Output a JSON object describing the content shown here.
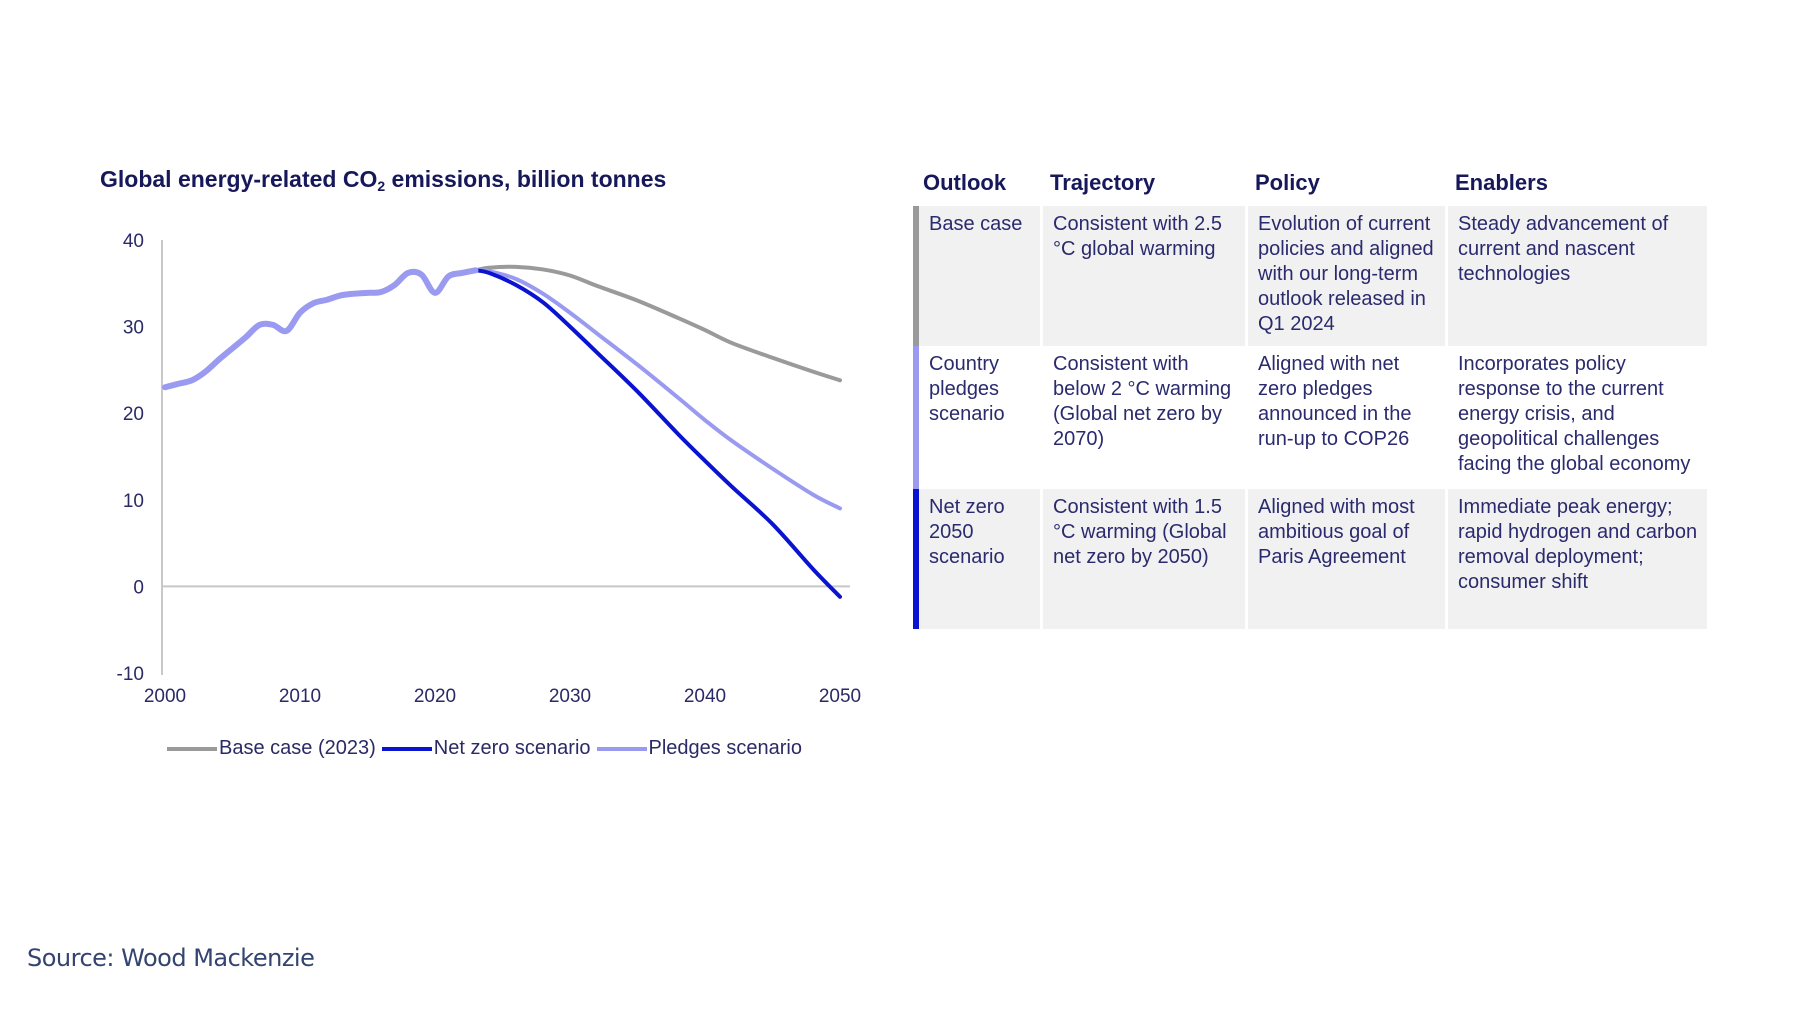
{
  "chart_title_main": "Global energy-related CO",
  "chart_title_sub": "2",
  "chart_title_rest": " emissions, billion tonnes",
  "chart_data": {
    "type": "line",
    "title": "Global energy-related CO2 emissions, billion tonnes",
    "xlabel": "",
    "ylabel": "",
    "xlim": [
      2000,
      2050
    ],
    "ylim": [
      -10,
      40
    ],
    "x_ticks": [
      2000,
      2010,
      2020,
      2030,
      2040,
      2050
    ],
    "y_ticks": [
      40,
      30,
      20,
      10,
      0,
      -10
    ],
    "grid": false,
    "legend_position": "bottom",
    "history": {
      "x": [
        2000,
        2001,
        2002,
        2003,
        2004,
        2005,
        2006,
        2007,
        2008,
        2009,
        2010,
        2011,
        2012,
        2013,
        2014,
        2015,
        2016,
        2017,
        2018,
        2019,
        2020,
        2021,
        2022,
        2023
      ],
      "y": [
        23.0,
        23.4,
        23.8,
        24.8,
        26.2,
        27.5,
        28.8,
        30.2,
        30.2,
        29.5,
        31.6,
        32.7,
        33.1,
        33.6,
        33.8,
        33.9,
        34.0,
        34.8,
        36.2,
        36.0,
        33.9,
        35.8,
        36.2,
        36.5
      ]
    },
    "series": [
      {
        "name": "Base case (2023)",
        "color": "#9a9a9a",
        "x": [
          2023,
          2024,
          2026,
          2028,
          2030,
          2032,
          2035,
          2038,
          2040,
          2042,
          2045,
          2048,
          2050
        ],
        "y": [
          36.5,
          36.8,
          36.9,
          36.6,
          35.9,
          34.7,
          33.0,
          31.0,
          29.6,
          28.1,
          26.4,
          24.8,
          23.8
        ]
      },
      {
        "name": "Net zero scenario",
        "color": "#0a14d0",
        "x": [
          2023,
          2024,
          2026,
          2028,
          2030,
          2032,
          2035,
          2038,
          2040,
          2042,
          2045,
          2048,
          2050
        ],
        "y": [
          36.5,
          36.2,
          34.8,
          32.8,
          30.0,
          27.0,
          22.5,
          17.6,
          14.5,
          11.5,
          7.2,
          2.0,
          -1.2
        ]
      },
      {
        "name": "Pledges scenario",
        "color": "#9a9af0",
        "x": [
          2023,
          2024,
          2026,
          2028,
          2030,
          2032,
          2035,
          2038,
          2040,
          2042,
          2045,
          2048,
          2050
        ],
        "y": [
          36.5,
          36.4,
          35.5,
          33.8,
          31.6,
          29.2,
          25.6,
          21.8,
          19.2,
          16.8,
          13.6,
          10.6,
          9.0
        ]
      }
    ]
  },
  "table": {
    "headers": [
      "Outlook",
      "Trajectory",
      "Policy",
      "Enablers"
    ],
    "rows": [
      {
        "outlook": "Base case",
        "trajectory": "Consistent with 2.5 °C global warming",
        "policy": "Evolution of current policies and aligned with our long-term outlook  released in Q1 2024",
        "enablers": "Steady advancement of current and nascent technologies",
        "accent": "#9a9a9a"
      },
      {
        "outlook": "Country pledges scenario",
        "trajectory": "Consistent with below 2 °C warming (Global net zero by 2070)",
        "policy": "Aligned with net zero pledges announced in the run-up to COP26",
        "enablers": "Incorporates policy response to the current energy crisis, and geopolitical challenges facing the global economy",
        "accent": "#9a9af0"
      },
      {
        "outlook": "Net zero 2050 scenario",
        "trajectory": "Consistent with 1.5 °C warming (Global net zero by 2050)",
        "policy": "Aligned with most ambitious goal of Paris Agreement",
        "enablers": "Immediate peak energy; rapid hydrogen and carbon removal deployment; consumer shift",
        "accent": "#0a14d0"
      }
    ]
  },
  "source": "Source: Wood Mackenzie"
}
